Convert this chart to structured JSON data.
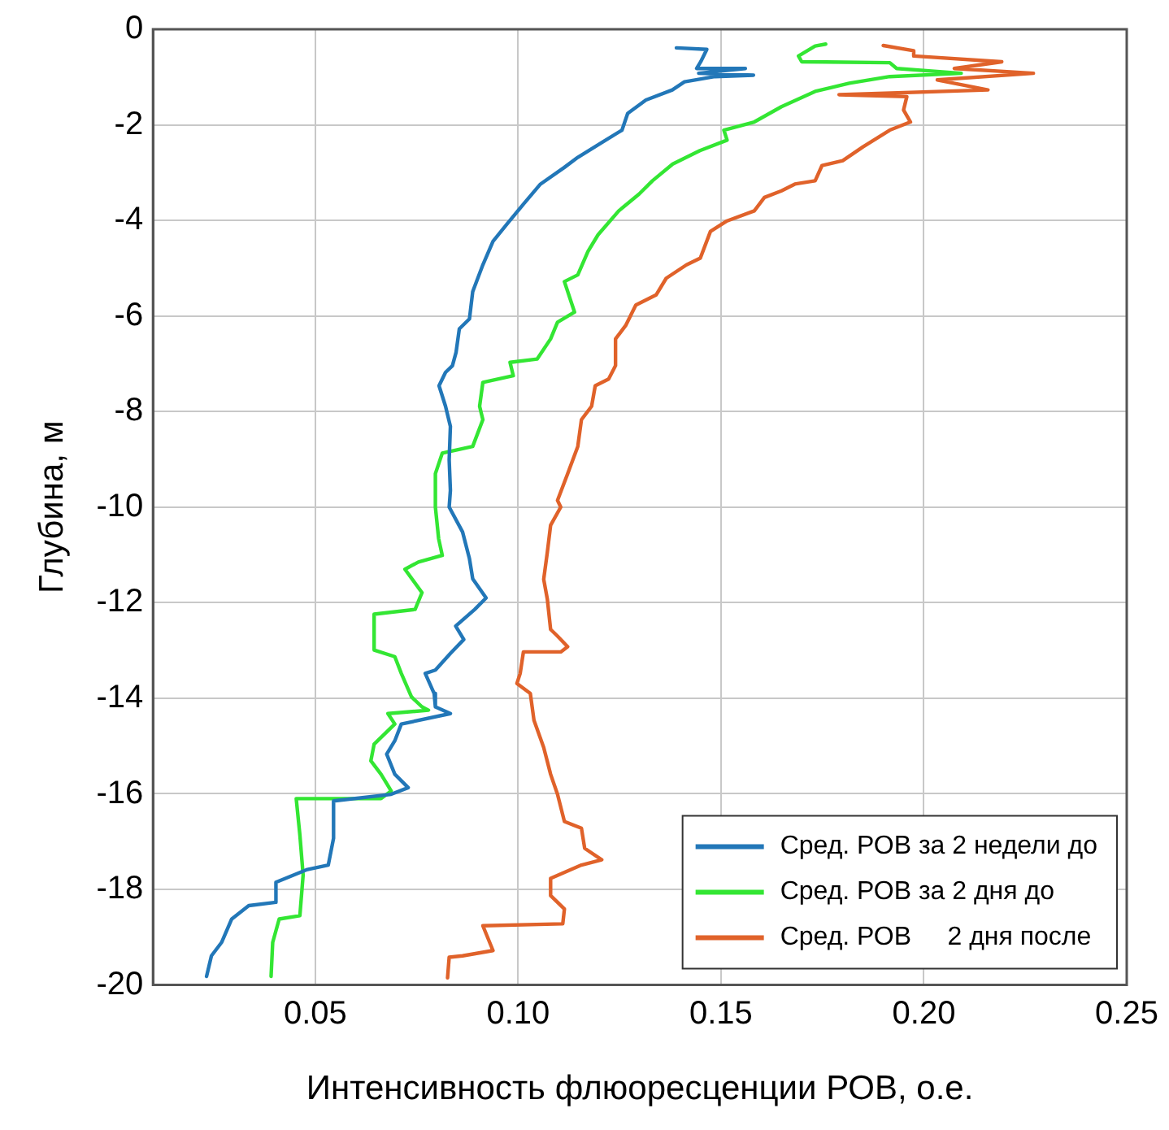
{
  "chart_data": {
    "type": "line",
    "xlabel": "Интенсивность флюоресценции РОВ, о.е.",
    "ylabel": "Глубина, м",
    "xlim": [
      0.01,
      0.25
    ],
    "xticks": [
      {
        "value": 0.05,
        "label": "0.05"
      },
      {
        "value": 0.1,
        "label": "0.10"
      },
      {
        "value": 0.15,
        "label": "0.15"
      },
      {
        "value": 0.2,
        "label": "0.20"
      },
      {
        "value": 0.25,
        "label": "0.25"
      }
    ],
    "ylim": [
      -20,
      0
    ],
    "yticks": [
      -20,
      -18,
      -16,
      -14,
      -12,
      -10,
      -8,
      -6,
      -4,
      -2,
      0
    ],
    "grid": true,
    "legend": "bottom right",
    "marker": "none",
    "line_style": "solid",
    "series": [
      {
        "name": "Сред. РОВ за 2 недели до",
        "color": "#2277b8",
        "x": [
          0.139,
          0.1465,
          0.145,
          0.144,
          0.156,
          0.1445,
          0.158,
          0.1485,
          0.141,
          0.138,
          0.1315,
          0.127,
          0.1256,
          0.1206,
          0.1147,
          0.1114,
          0.1055,
          0.1013,
          0.0972,
          0.0938,
          0.0913,
          0.0888,
          0.088,
          0.0855,
          0.0847,
          0.0838,
          0.0821,
          0.0805,
          0.0821,
          0.0833,
          0.083,
          0.0833,
          0.083,
          0.0863,
          0.088,
          0.0888,
          0.0921,
          0.0893,
          0.0846,
          0.0866,
          0.0833,
          0.0796,
          0.0771,
          0.0793,
          0.0796,
          0.0833,
          0.0712,
          0.0696,
          0.0676,
          0.0696,
          0.0729,
          0.0687,
          0.0545,
          0.0545,
          0.0532,
          0.0478,
          0.0403,
          0.0403,
          0.0336,
          0.0294,
          0.0269,
          0.0244,
          0.0232
        ],
        "values": [
          -0.39,
          -0.42,
          -0.68,
          -0.82,
          -0.82,
          -0.92,
          -0.96,
          -0.99,
          -1.1,
          -1.27,
          -1.48,
          -1.76,
          -2.11,
          -2.37,
          -2.68,
          -2.89,
          -3.24,
          -3.66,
          -4.08,
          -4.44,
          -4.93,
          -5.49,
          -6.06,
          -6.27,
          -6.76,
          -7.04,
          -7.18,
          -7.46,
          -7.89,
          -8.31,
          -9.01,
          -9.65,
          -10.0,
          -10.52,
          -11.08,
          -11.5,
          -11.9,
          -12.14,
          -12.49,
          -12.77,
          -13.06,
          -13.41,
          -13.48,
          -13.9,
          -14.18,
          -14.32,
          -14.54,
          -14.89,
          -15.17,
          -15.59,
          -15.87,
          -16.01,
          -16.15,
          -16.93,
          -17.49,
          -17.59,
          -17.85,
          -18.27,
          -18.34,
          -18.62,
          -19.11,
          -19.39,
          -19.82
        ]
      },
      {
        "name": "Сред. РОВ за 2 дня до",
        "color": "#33e633",
        "x": [
          0.1758,
          0.1732,
          0.1691,
          0.1699,
          0.1916,
          0.1933,
          0.2092,
          0.1916,
          0.1816,
          0.1732,
          0.1649,
          0.1582,
          0.1507,
          0.1515,
          0.1448,
          0.1381,
          0.1331,
          0.1298,
          0.1248,
          0.1197,
          0.1172,
          0.1147,
          0.1114,
          0.1139,
          0.1097,
          0.108,
          0.1047,
          0.098,
          0.0988,
          0.0913,
          0.0905,
          0.0913,
          0.0888,
          0.0813,
          0.0796,
          0.0796,
          0.0804,
          0.0813,
          0.0754,
          0.0721,
          0.0763,
          0.0746,
          0.0645,
          0.0645,
          0.0696,
          0.0712,
          0.0737,
          0.0763,
          0.0779,
          0.0679,
          0.0696,
          0.0645,
          0.0637,
          0.0662,
          0.0687,
          0.0662,
          0.0453,
          0.0462,
          0.047,
          0.0462,
          0.0411,
          0.0395,
          0.0391
        ],
        "values": [
          -0.31,
          -0.35,
          -0.56,
          -0.68,
          -0.7,
          -0.82,
          -0.92,
          -0.99,
          -1.13,
          -1.3,
          -1.62,
          -1.94,
          -2.11,
          -2.32,
          -2.54,
          -2.82,
          -3.17,
          -3.45,
          -3.8,
          -4.3,
          -4.65,
          -5.14,
          -5.28,
          -5.92,
          -6.13,
          -6.48,
          -6.9,
          -6.97,
          -7.25,
          -7.39,
          -7.89,
          -8.17,
          -8.73,
          -8.87,
          -9.3,
          -10.0,
          -10.66,
          -11.01,
          -11.15,
          -11.3,
          -11.79,
          -12.14,
          -12.24,
          -12.99,
          -13.13,
          -13.48,
          -13.97,
          -14.18,
          -14.25,
          -14.32,
          -14.54,
          -14.96,
          -15.31,
          -15.59,
          -15.94,
          -16.1,
          -16.1,
          -16.86,
          -17.7,
          -18.55,
          -18.62,
          -19.11,
          -19.82
        ]
      },
      {
        "name": "Сред. РОВ     2 дня после",
        "color": "#e0622a",
        "x": [
          0.19,
          0.1975,
          0.1975,
          0.2192,
          0.2075,
          0.227,
          0.2033,
          0.2158,
          0.1791,
          0.1958,
          0.195,
          0.1967,
          0.1916,
          0.185,
          0.18,
          0.1749,
          0.1732,
          0.1682,
          0.1649,
          0.1607,
          0.1582,
          0.1515,
          0.1474,
          0.1449,
          0.1415,
          0.1365,
          0.134,
          0.129,
          0.1265,
          0.124,
          0.124,
          0.1223,
          0.119,
          0.1181,
          0.1156,
          0.1147,
          0.1122,
          0.1097,
          0.1105,
          0.108,
          0.1072,
          0.1063,
          0.1072,
          0.108,
          0.1097,
          0.1122,
          0.1105,
          0.1013,
          0.1005,
          0.0997,
          0.103,
          0.1039,
          0.1063,
          0.108,
          0.1097,
          0.1114,
          0.1156,
          0.1164,
          0.1206,
          0.1156,
          0.108,
          0.108,
          0.1114,
          0.111,
          0.0913,
          0.0938,
          0.0863,
          0.083,
          0.0826
        ],
        "values": [
          -0.34,
          -0.45,
          -0.56,
          -0.68,
          -0.82,
          -0.92,
          -1.06,
          -1.27,
          -1.37,
          -1.41,
          -1.69,
          -1.94,
          -2.11,
          -2.46,
          -2.75,
          -2.85,
          -3.17,
          -3.24,
          -3.38,
          -3.52,
          -3.8,
          -4.01,
          -4.23,
          -4.79,
          -4.93,
          -5.21,
          -5.56,
          -5.77,
          -6.2,
          -6.48,
          -7.04,
          -7.32,
          -7.46,
          -7.89,
          -8.17,
          -8.73,
          -9.3,
          -9.86,
          -10.0,
          -10.38,
          -10.94,
          -11.51,
          -11.93,
          -12.56,
          -12.7,
          -12.92,
          -13.03,
          -13.03,
          -13.48,
          -13.69,
          -13.9,
          -14.46,
          -15.03,
          -15.59,
          -16.01,
          -16.58,
          -16.72,
          -17.14,
          -17.38,
          -17.49,
          -17.77,
          -18.13,
          -18.41,
          -18.72,
          -18.76,
          -19.28,
          -19.39,
          -19.42,
          -19.85
        ]
      }
    ]
  }
}
